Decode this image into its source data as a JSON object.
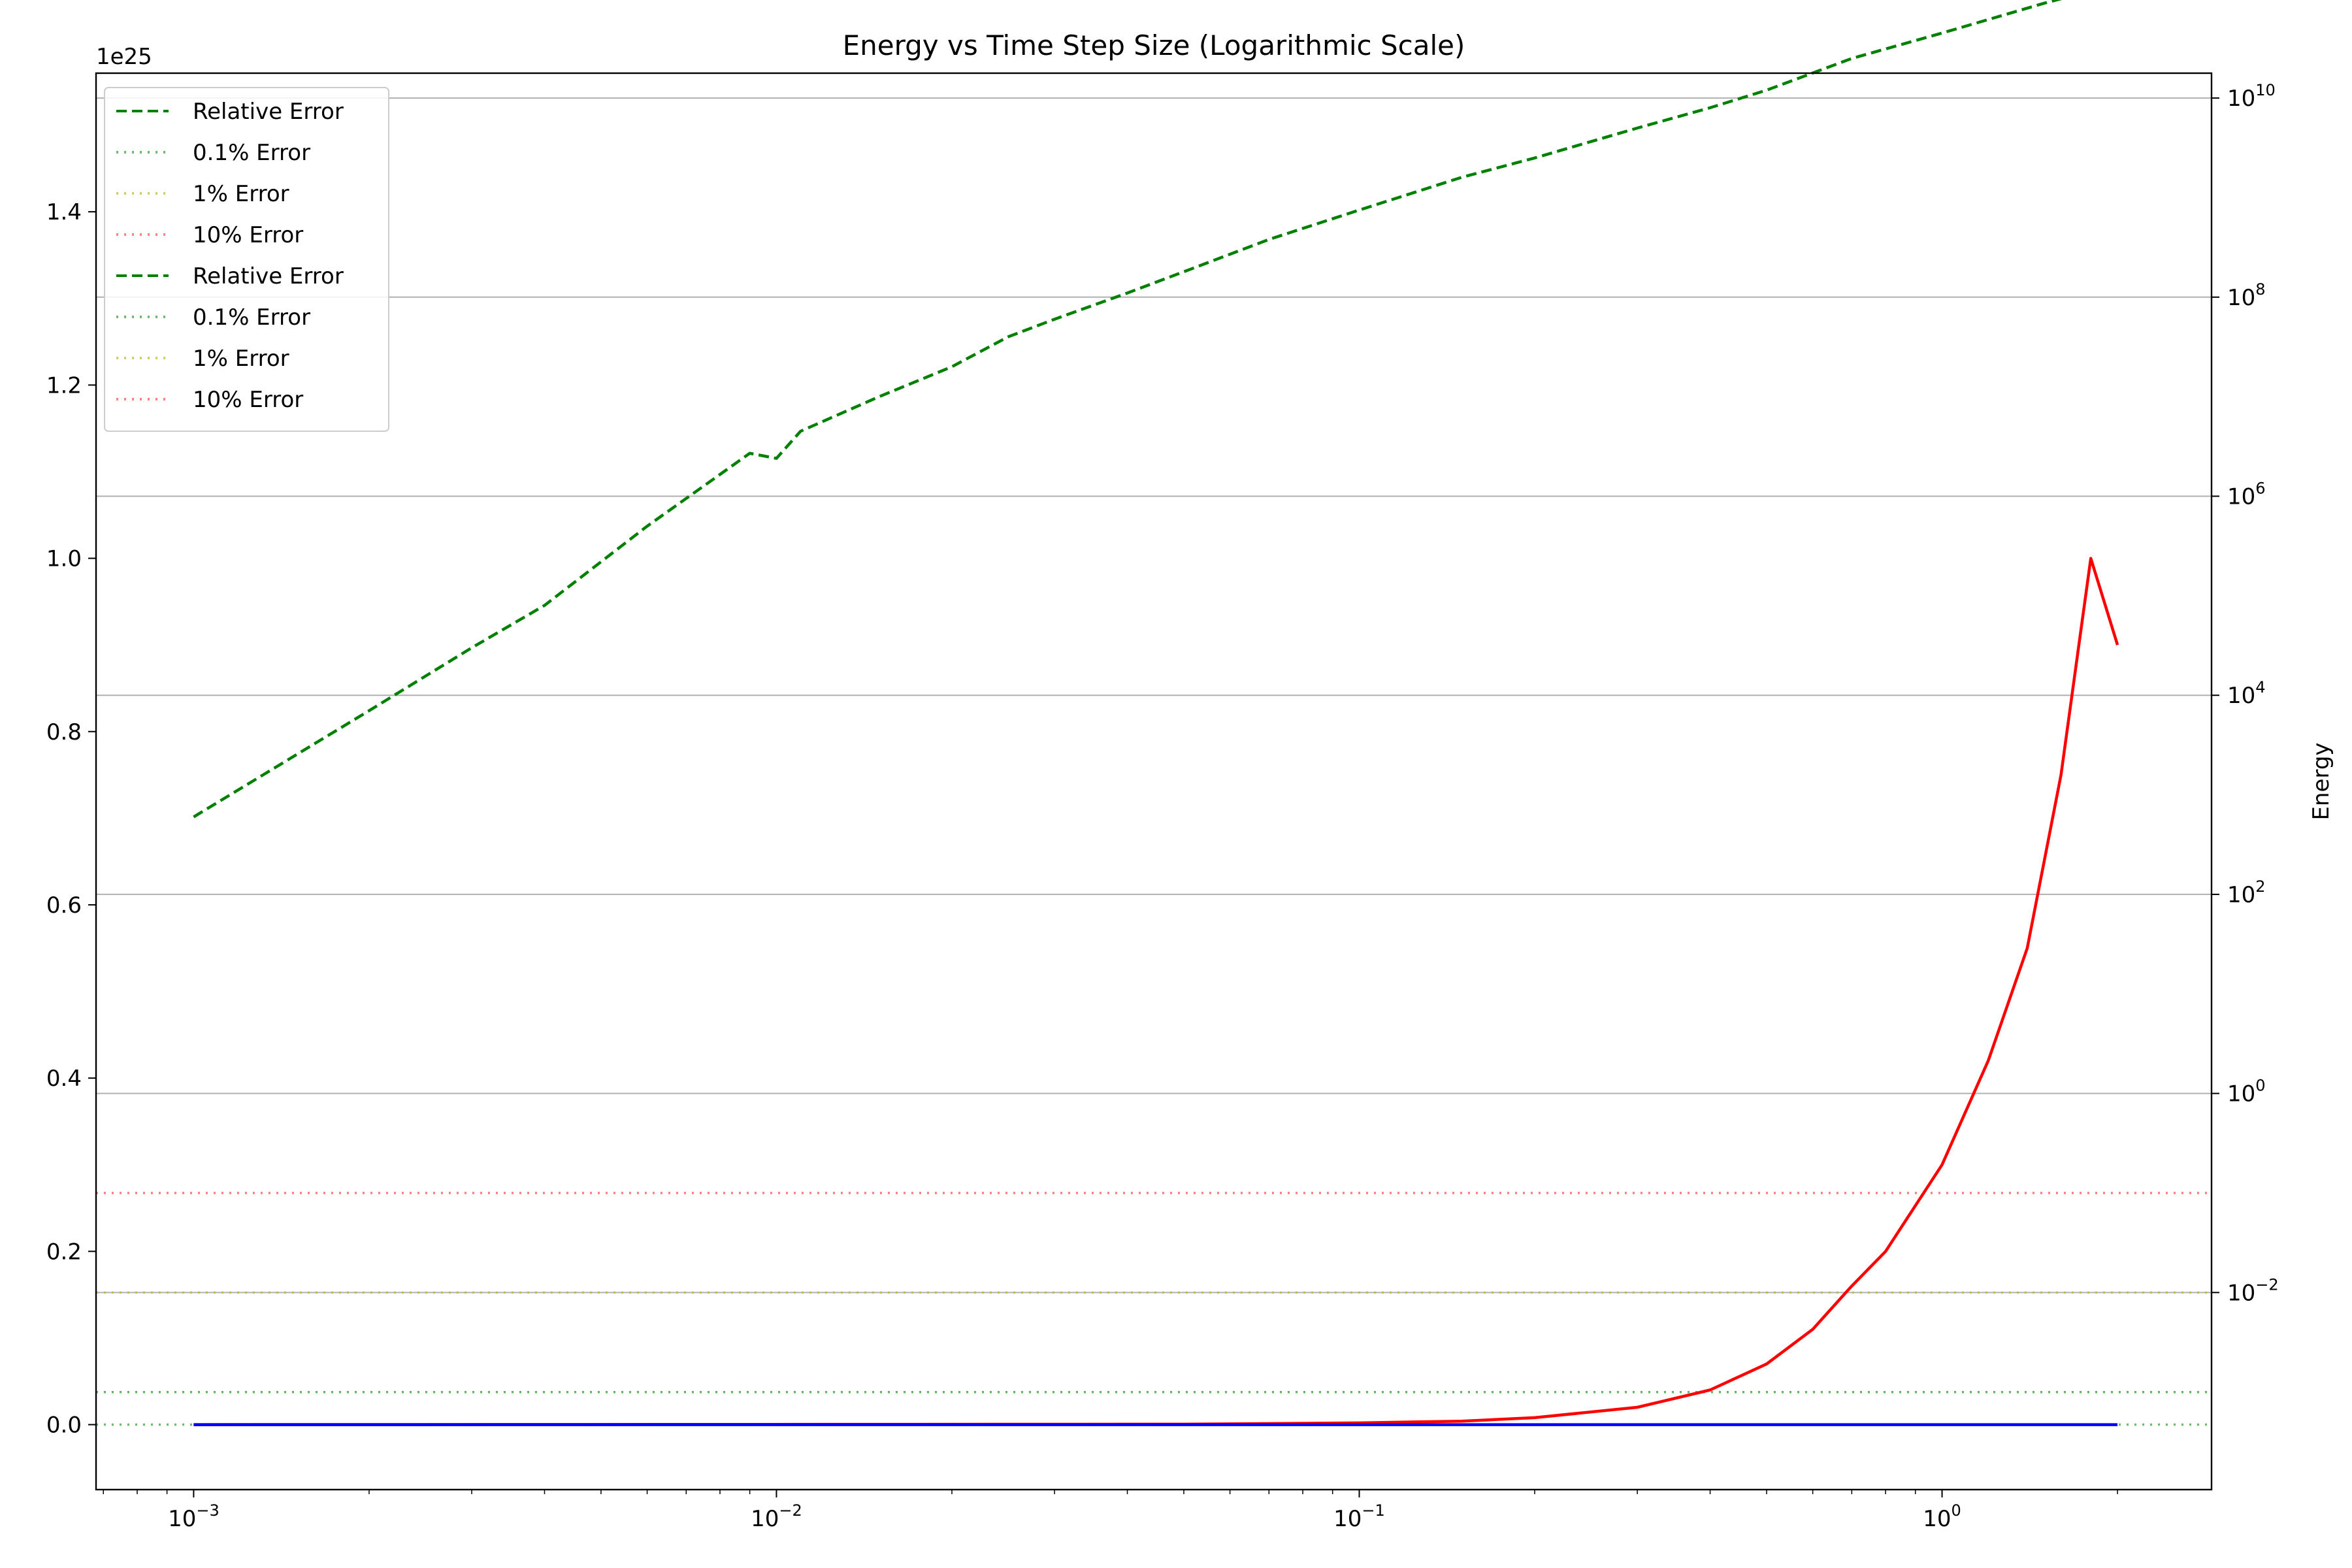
{
  "chart_data": {
    "type": "line",
    "title": "Energy vs Time Step Size (Logarithmic Scale)",
    "xlabel": "",
    "ylabel_left": "",
    "ylabel_right": "Energy",
    "x_scale": "log",
    "xlim": [
      0.00068,
      2.9
    ],
    "x_ticks": [
      {
        "value": 0.001,
        "base": "10",
        "exp": "−3"
      },
      {
        "value": 0.01,
        "base": "10",
        "exp": "−2"
      },
      {
        "value": 0.1,
        "base": "10",
        "exp": "−1"
      },
      {
        "value": 1,
        "base": "10",
        "exp": "0"
      }
    ],
    "left_axis": {
      "scale": "linear",
      "ylim": [
        -0.075,
        1.56
      ],
      "multiplier_label": "1e25",
      "ticks": [
        {
          "value": 0.0,
          "label": "0.0"
        },
        {
          "value": 0.2,
          "label": "0.2"
        },
        {
          "value": 0.4,
          "label": "0.4"
        },
        {
          "value": 0.6,
          "label": "0.6"
        },
        {
          "value": 0.8,
          "label": "0.8"
        },
        {
          "value": 1.0,
          "label": "1.0"
        },
        {
          "value": 1.2,
          "label": "1.2"
        },
        {
          "value": 1.4,
          "label": "1.4"
        }
      ]
    },
    "right_axis": {
      "scale": "log",
      "ylim_exp": [
        -3.98,
        10.25
      ],
      "ticks": [
        {
          "exp": -2,
          "base": "10",
          "label_exp": "−2"
        },
        {
          "exp": 0,
          "base": "10",
          "label_exp": "0"
        },
        {
          "exp": 2,
          "base": "10",
          "label_exp": "2"
        },
        {
          "exp": 4,
          "base": "10",
          "label_exp": "4"
        },
        {
          "exp": 6,
          "base": "10",
          "label_exp": "6"
        },
        {
          "exp": 8,
          "base": "10",
          "label_exp": "8"
        },
        {
          "exp": 10,
          "base": "10",
          "label_exp": "10"
        }
      ],
      "grid": true
    },
    "series": [
      {
        "name": "Relative Error",
        "axis": "right",
        "color": "#008000",
        "style": "dashed",
        "x": [
          0.001,
          0.002,
          0.003,
          0.004,
          0.006,
          0.009,
          0.01,
          0.011,
          0.015,
          0.02,
          0.025,
          0.03,
          0.04,
          0.05,
          0.07,
          0.1,
          0.15,
          0.2,
          0.3,
          0.4,
          0.5,
          0.7,
          1.0,
          1.5,
          2.0
        ],
        "y": [
          600,
          7000,
          30000,
          80000,
          500000,
          2700000,
          2400000,
          4500000,
          10000000,
          20000000,
          40000000,
          60000000,
          110000000,
          180000000,
          380000000,
          750000000,
          1600000000,
          2500000000,
          5000000000,
          8000000000,
          12000000000,
          25000000000,
          45000000000,
          90000000000,
          140000000000
        ]
      },
      {
        "name": "Energy",
        "axis": "left",
        "color": "#ff0000",
        "style": "solid",
        "x": [
          0.001,
          0.05,
          0.1,
          0.15,
          0.2,
          0.3,
          0.4,
          0.5,
          0.6,
          0.7,
          0.8,
          1.0,
          1.2,
          1.4,
          1.6,
          1.8,
          2.0
        ],
        "y": [
          0.0,
          0.0005,
          0.002,
          0.004,
          0.008,
          0.02,
          0.04,
          0.07,
          0.11,
          0.16,
          0.2,
          0.3,
          0.42,
          0.55,
          0.75,
          1.0,
          0.9
        ]
      },
      {
        "name": "",
        "axis": "left",
        "color": "#0000ff",
        "style": "solid",
        "x": [
          0.001,
          2.0
        ],
        "y": [
          0.0,
          0.0
        ]
      }
    ],
    "reference_lines": [
      {
        "name": "0.1% Error",
        "value": 0.001,
        "color": "#2ca02c"
      },
      {
        "name": "1% Error",
        "value": 0.01,
        "color": "#bcbd22"
      },
      {
        "name": "10% Error",
        "value": 0.1,
        "color": "#ff4d4d"
      }
    ],
    "legend": {
      "placement": "upper-left",
      "entries": [
        {
          "label": "Relative Error",
          "color": "#008000",
          "style": "dashed"
        },
        {
          "label": "0.1% Error",
          "color": "#2ca02c",
          "style": "dotted"
        },
        {
          "label": "1% Error",
          "color": "#bcbd22",
          "style": "dotted"
        },
        {
          "label": "10% Error",
          "color": "#ff4d4d",
          "style": "dotted"
        },
        {
          "label": "Relative Error",
          "color": "#008000",
          "style": "dashed"
        },
        {
          "label": "0.1% Error",
          "color": "#2ca02c",
          "style": "dotted"
        },
        {
          "label": "1% Error",
          "color": "#bcbd22",
          "style": "dotted"
        },
        {
          "label": "10% Error",
          "color": "#ff4d4d",
          "style": "dotted"
        }
      ]
    }
  }
}
